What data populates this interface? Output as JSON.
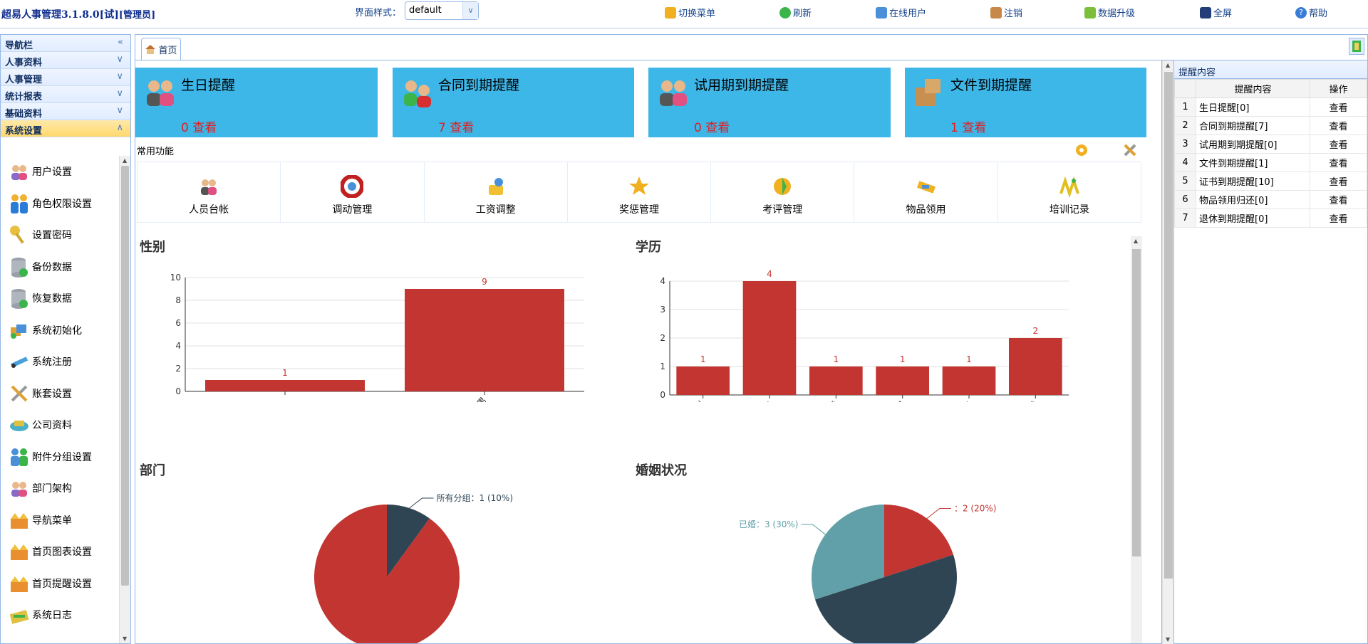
{
  "header": {
    "app_title": "超易人事管理3.1.8.0[试]",
    "role": "[管理员]",
    "style_label": "界面样式：",
    "style_value": "default",
    "toolbar": [
      {
        "label": "切换菜单",
        "icon": "switch-menu-icon"
      },
      {
        "label": "刷新",
        "icon": "refresh-icon"
      },
      {
        "label": "在线用户",
        "icon": "online-users-icon"
      },
      {
        "label": "注销",
        "icon": "logout-icon"
      },
      {
        "label": "数据升级",
        "icon": "data-upgrade-icon"
      },
      {
        "label": "全屏",
        "icon": "fullscreen-icon"
      },
      {
        "label": "帮助",
        "icon": "help-icon"
      }
    ]
  },
  "nav": {
    "header": "导航栏",
    "sections": [
      {
        "label": "人事资料"
      },
      {
        "label": "人事管理"
      },
      {
        "label": "统计报表"
      },
      {
        "label": "基础资料"
      },
      {
        "label": "系统设置"
      }
    ],
    "items": [
      {
        "label": "用户设置",
        "icon": "users-icon"
      },
      {
        "label": "角色权限设置",
        "icon": "role-permission-icon"
      },
      {
        "label": "设置密码",
        "icon": "key-icon"
      },
      {
        "label": "备份数据",
        "icon": "database-backup-icon"
      },
      {
        "label": "恢复数据",
        "icon": "database-restore-icon"
      },
      {
        "label": "系统初始化",
        "icon": "system-init-icon"
      },
      {
        "label": "系统注册",
        "icon": "register-icon"
      },
      {
        "label": "账套设置",
        "icon": "tools-icon"
      },
      {
        "label": "公司资料",
        "icon": "company-icon"
      },
      {
        "label": "附件分组设置",
        "icon": "attachment-group-icon"
      },
      {
        "label": "部门架构",
        "icon": "department-icon"
      },
      {
        "label": "导航菜单",
        "icon": "nav-menu-icon"
      },
      {
        "label": "首页图表设置",
        "icon": "chart-settings-icon"
      },
      {
        "label": "首页提醒设置",
        "icon": "reminder-settings-icon"
      },
      {
        "label": "系统日志",
        "icon": "system-log-icon"
      }
    ]
  },
  "tabs": [
    {
      "label": "首页"
    }
  ],
  "reminders": [
    {
      "title": "生日提醒",
      "count": "0 查看"
    },
    {
      "title": "合同到期提醒",
      "count": "7 查看"
    },
    {
      "title": "试用期到期提醒",
      "count": "0 查看"
    },
    {
      "title": "文件到期提醒",
      "count": "1 查看"
    }
  ],
  "common": {
    "label": "常用功能",
    "items": [
      {
        "label": "人员台帐",
        "icon": "staff-ledger-icon"
      },
      {
        "label": "调动管理",
        "icon": "transfer-icon"
      },
      {
        "label": "工资调整",
        "icon": "salary-adjust-icon"
      },
      {
        "label": "奖惩管理",
        "icon": "reward-punish-icon"
      },
      {
        "label": "考评管理",
        "icon": "evaluation-icon"
      },
      {
        "label": "物品领用",
        "icon": "item-requisition-icon"
      },
      {
        "label": "培训记录",
        "icon": "training-icon"
      }
    ]
  },
  "chart_data": [
    {
      "type": "bar",
      "title": "性别",
      "categories": [
        "",
        "男"
      ],
      "values": [
        1,
        9
      ],
      "ylim": [
        0,
        10
      ],
      "yticks": [
        0,
        2,
        4,
        6,
        8,
        10
      ],
      "color": "#c23531"
    },
    {
      "type": "bar",
      "title": "学历",
      "categories": [
        "本科",
        "博士",
        "大专",
        "高中",
        "硕士",
        "中专"
      ],
      "values": [
        1,
        4,
        1,
        1,
        1,
        2
      ],
      "ylim": [
        0,
        4
      ],
      "yticks": [
        0,
        1,
        2,
        3,
        4
      ],
      "color": "#c23531"
    },
    {
      "type": "pie",
      "title": "部门",
      "slices": [
        {
          "label": "所有分组：1 (10%)",
          "value": 1,
          "percent": 10,
          "color": "#2f4554"
        },
        {
          "label": "",
          "value": 9,
          "percent": 90,
          "color": "#c23531"
        }
      ]
    },
    {
      "type": "pie",
      "title": "婚姻状况",
      "slices": [
        {
          "label": "：2 (20%)",
          "value": 2,
          "percent": 20,
          "color": "#c23531"
        },
        {
          "label": "",
          "value": 5,
          "percent": 50,
          "color": "#2f4554"
        },
        {
          "label": "已婚：3 (30%)",
          "value": 3,
          "percent": 30,
          "color": "#61a0a8"
        }
      ]
    }
  ],
  "right_panel": {
    "title": "提醒内容",
    "columns": [
      "提醒内容",
      "操作"
    ],
    "rows": [
      {
        "no": "1",
        "content": "生日提醒[0]",
        "action": "查看"
      },
      {
        "no": "2",
        "content": "合同到期提醒[7]",
        "action": "查看"
      },
      {
        "no": "3",
        "content": "试用期到期提醒[0]",
        "action": "查看"
      },
      {
        "no": "4",
        "content": "文件到期提醒[1]",
        "action": "查看"
      },
      {
        "no": "5",
        "content": "证书到期提醒[10]",
        "action": "查看"
      },
      {
        "no": "6",
        "content": "物品领用归还[0]",
        "action": "查看"
      },
      {
        "no": "7",
        "content": "退休到期提醒[0]",
        "action": "查看"
      }
    ]
  },
  "colors": {
    "accent": "#15428b",
    "card": "#3db6e8",
    "bar": "#c23531",
    "border": "#95b8e7"
  }
}
